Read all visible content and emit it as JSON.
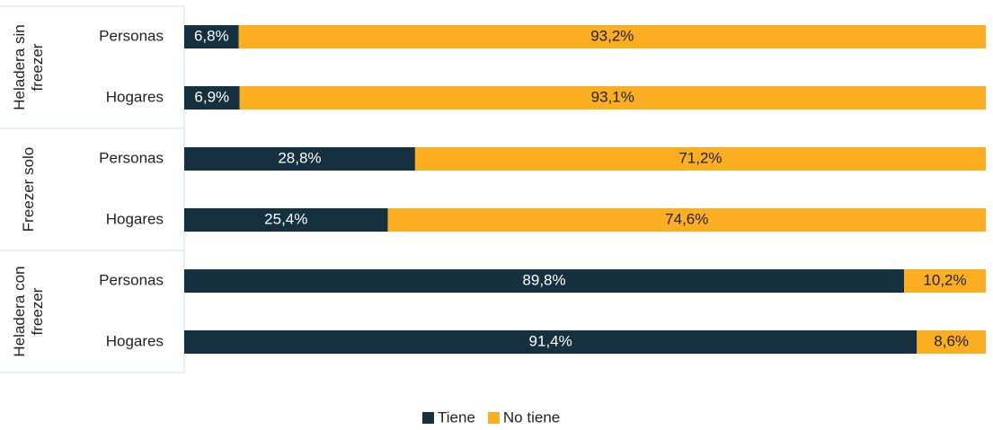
{
  "chart_data": {
    "type": "stacked_bar_horizontal",
    "groups": [
      "Heladera sin freezer",
      "Freezer solo",
      "Heladera con freezer"
    ],
    "categories": [
      "Personas",
      "Hogares",
      "Personas",
      "Hogares",
      "Personas",
      "Hogares"
    ],
    "series": [
      {
        "name": "Tiene",
        "color": "#15313f",
        "values": [
          6.8,
          6.9,
          28.8,
          25.4,
          89.8,
          91.4
        ],
        "value_labels": [
          "6,8%",
          "6,9%",
          "28,8%",
          "25,4%",
          "89,8%",
          "91,4%"
        ]
      },
      {
        "name": "No tiene",
        "color": "#fbae22",
        "values": [
          93.2,
          93.1,
          71.2,
          74.6,
          10.2,
          8.6
        ],
        "value_labels": [
          "93,2%",
          "93,1%",
          "71,2%",
          "74,6%",
          "10,2%",
          "8,6%"
        ]
      }
    ],
    "xlim": [
      0,
      100
    ],
    "legend": "bottom"
  }
}
